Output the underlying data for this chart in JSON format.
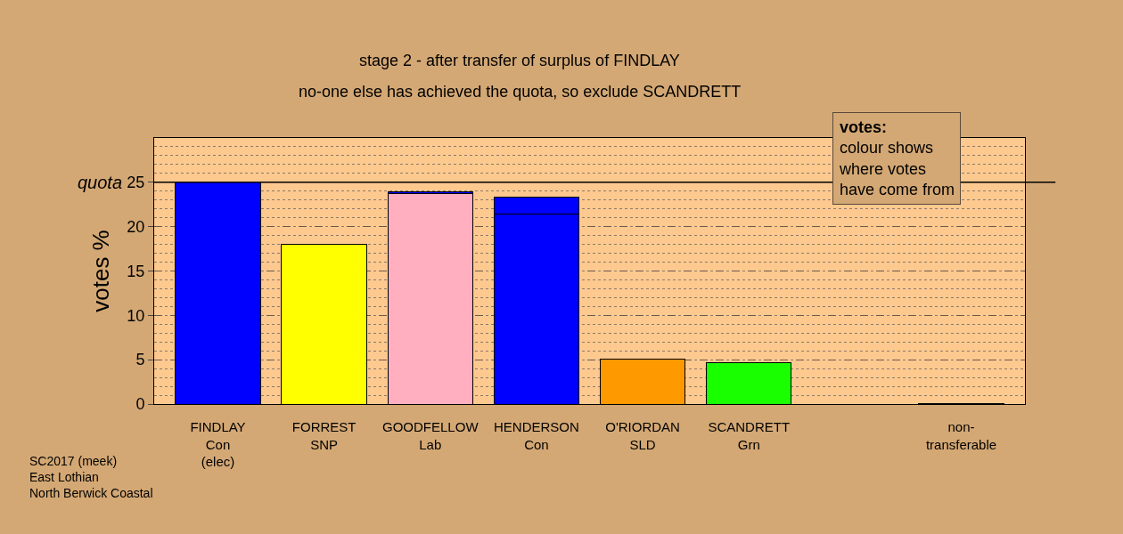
{
  "chart_data": {
    "type": "bar",
    "title": "stage 2 - after transfer of surplus of FINDLAY",
    "subtitle": "no-one else has achieved the quota, so exclude SCANDRETT",
    "ylabel": "votes %",
    "categories": [
      "FINDLAY\nCon\n(elec)",
      "FORREST\nSNP",
      "GOODFELLOW\nLab",
      "HENDERSON\nCon",
      "O'RIORDAN\nSLD",
      "SCANDRETT\nGrn",
      null,
      "non-\ntransferable"
    ],
    "stacked": true,
    "series": [
      {
        "colors": [
          "#0000ff",
          "#ffff00",
          "#ffafc0",
          "#0000ff",
          "#ff9900",
          "#1aff00",
          null,
          "#3a2a1a"
        ],
        "values": [
          25,
          18.0,
          23.7,
          21.4,
          5.1,
          4.7,
          null,
          0.1
        ]
      },
      {
        "color": "#0000ff",
        "values": [
          null,
          null,
          0.2,
          1.9,
          null,
          null,
          null,
          null
        ]
      }
    ],
    "ylim": [
      0,
      30
    ],
    "yticks": [
      0,
      5,
      10,
      15,
      20,
      25
    ],
    "grid": "y",
    "ref_lines": [
      {
        "axis": "y",
        "value": 25,
        "label": "quota",
        "color": "#000000",
        "line_style": "solid"
      }
    ],
    "annotations": [
      "votes:\ncolour shows\nwhere votes\nhave come from",
      "SC2017 (meek)\nEast Lothian\nNorth Berwick Coastal"
    ]
  }
}
